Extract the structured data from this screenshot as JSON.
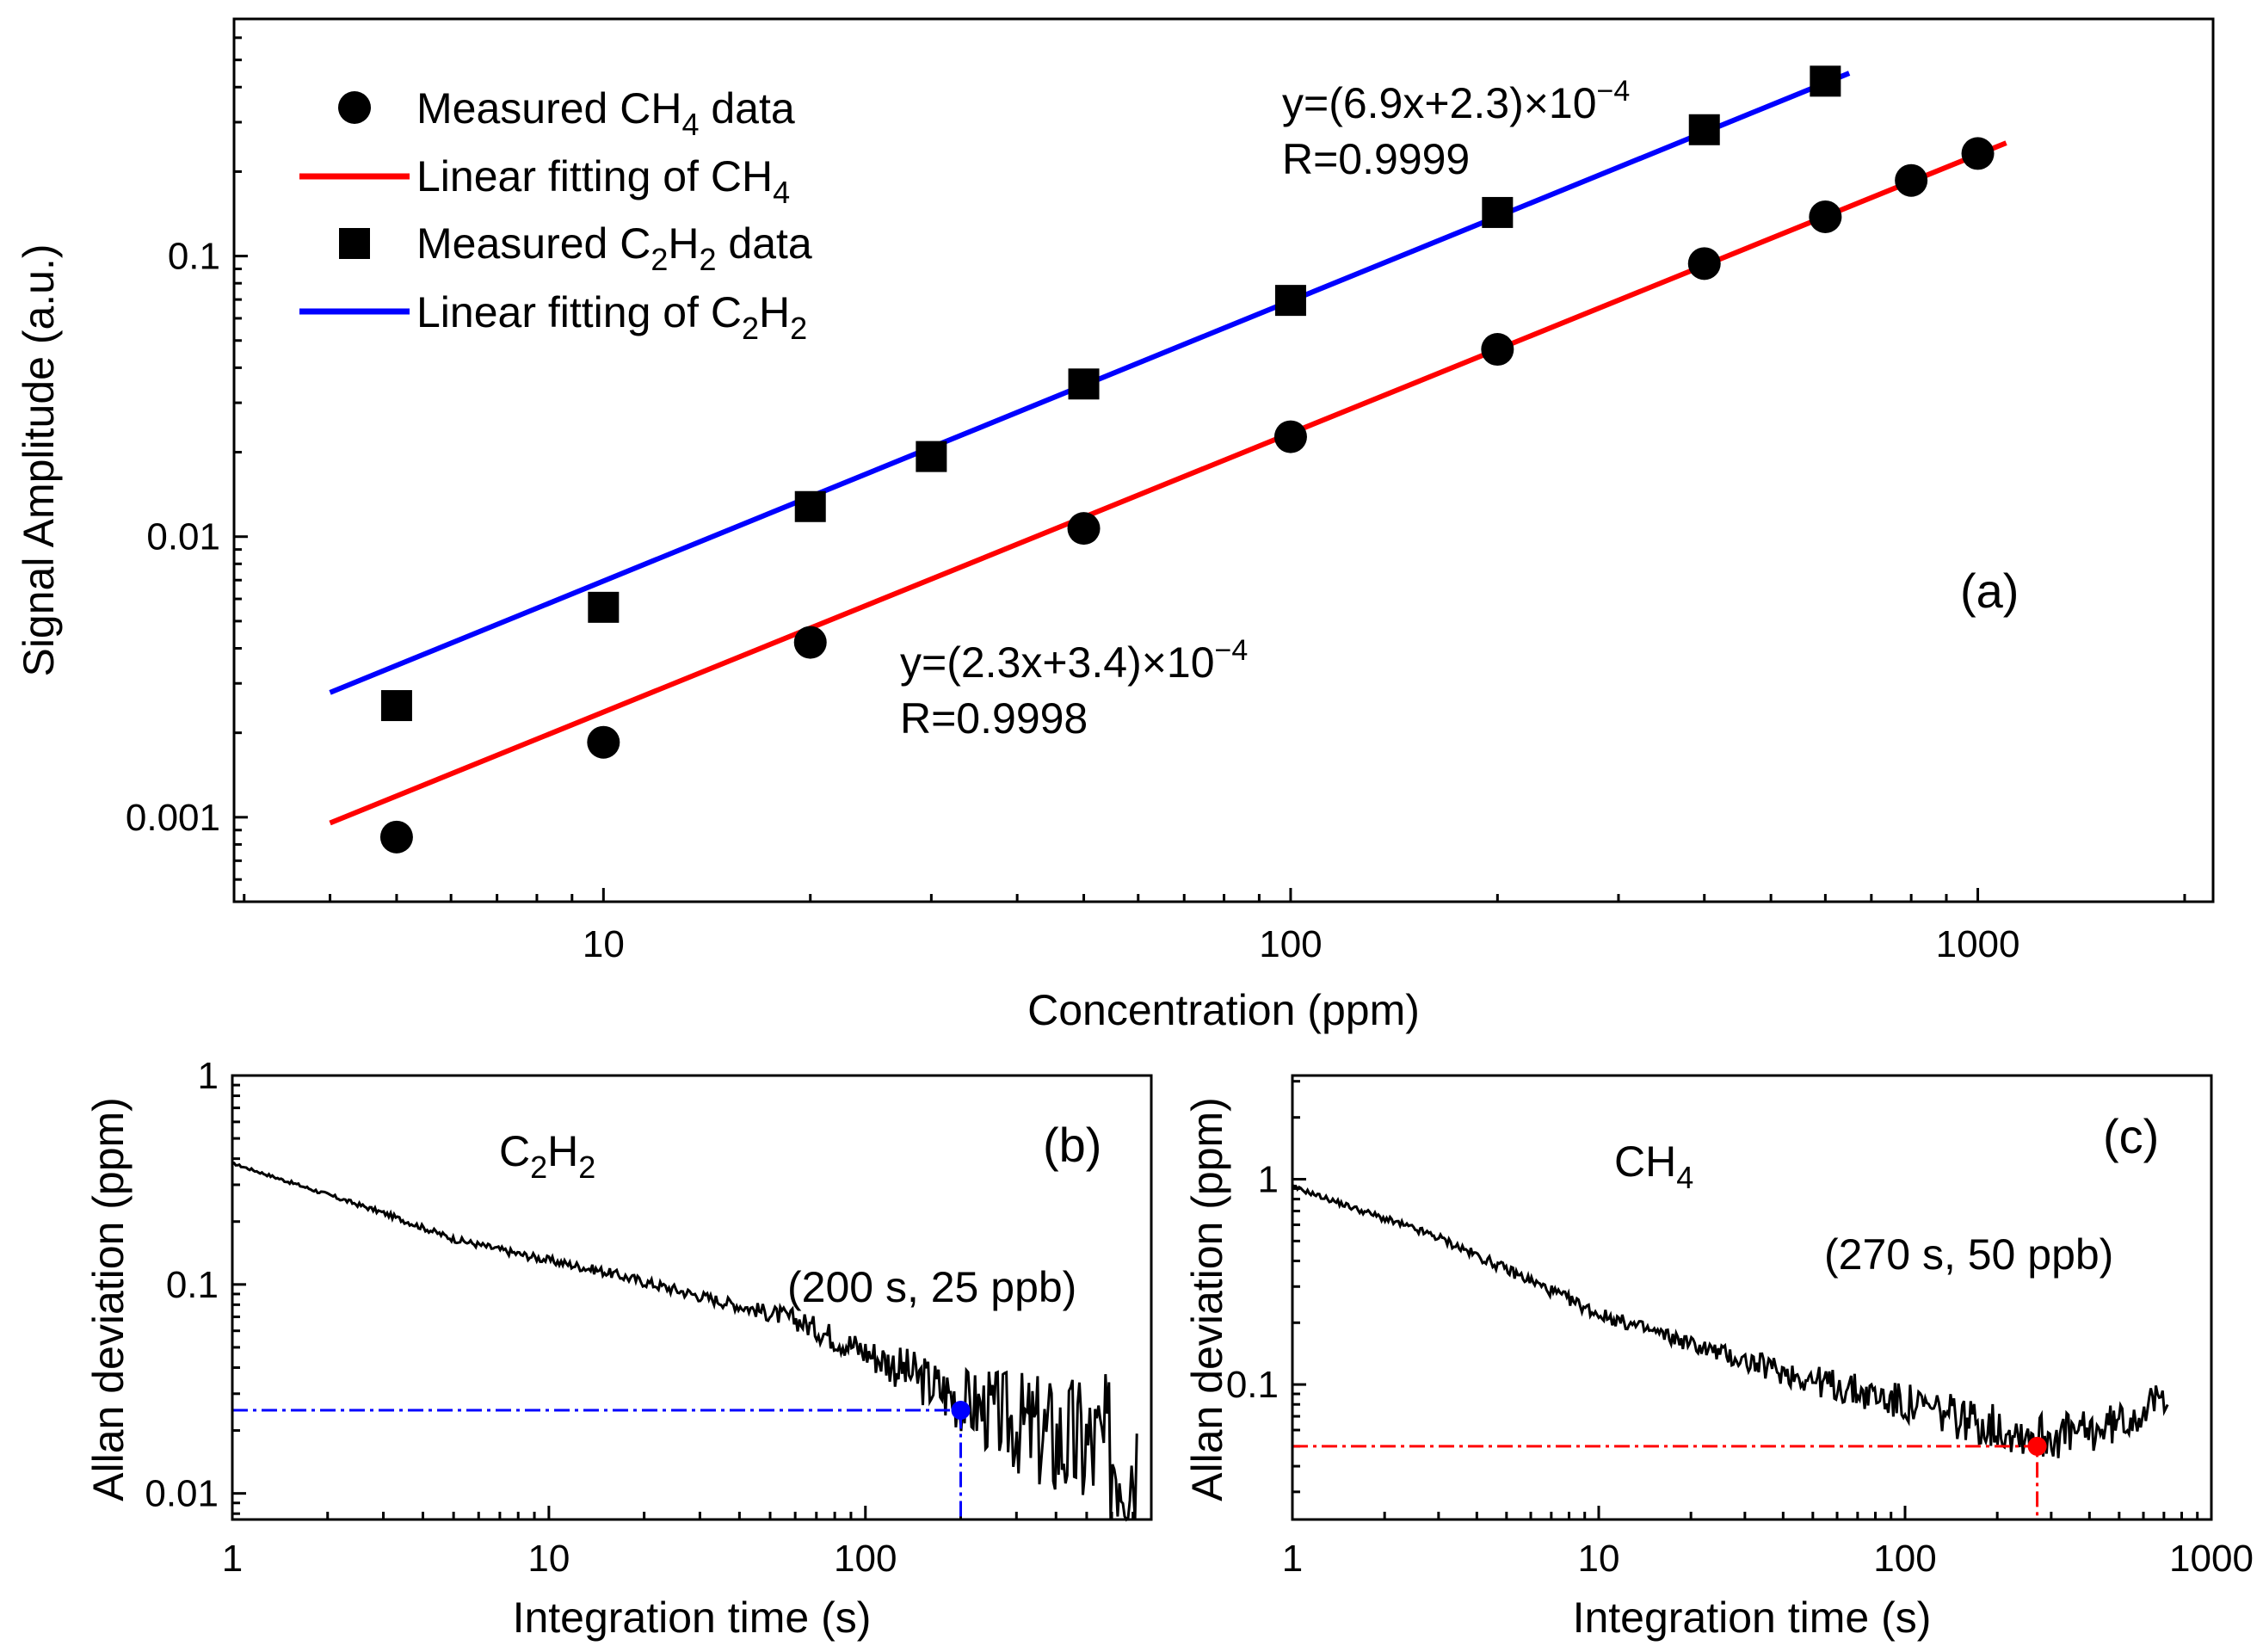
{
  "colors": {
    "ch4": "#ff0000",
    "c2h2": "#0000ff",
    "marker": "#000000",
    "noise": "#000000"
  },
  "chart_data": [
    {
      "panel": "(a)",
      "type": "scatter",
      "x_scale": "log",
      "y_scale": "log",
      "xlabel": "Concentration (ppm)",
      "ylabel": "Signal Amplitude (a.u.)",
      "xlim": [
        2.9,
        2200
      ],
      "ylim": [
        0.0005,
        0.7
      ],
      "x_ticks": [
        10,
        100,
        1000
      ],
      "x_tick_labels": [
        "10",
        "100",
        "1000"
      ],
      "y_ticks": [
        0.001,
        0.01,
        0.1
      ],
      "y_tick_labels": [
        "0.001",
        "0.01",
        "0.1"
      ],
      "series": [
        {
          "key": "ch4_measured",
          "legend": {
            "pre": "Measured CH",
            "sub": "4",
            "post": " data"
          },
          "marker": "circle",
          "x": [
            5,
            10,
            20,
            50,
            100,
            200,
            400,
            600,
            800,
            1000
          ],
          "y": [
            0.00085,
            0.00185,
            0.0042,
            0.0107,
            0.0227,
            0.0465,
            0.094,
            0.138,
            0.186,
            0.232
          ]
        },
        {
          "key": "ch4_fit",
          "legend": {
            "pre": "Linear fitting of CH",
            "sub": "4",
            "post": ""
          },
          "line": true,
          "color_key": "ch4",
          "slope": 0.00023,
          "intercept": 3.4e-05,
          "x_range": [
            4,
            1100
          ]
        },
        {
          "key": "c2h2_measured",
          "legend": {
            "pre": "Measured C",
            "sub": "2",
            "mid": "H",
            "sub2": "2",
            "post": " data"
          },
          "marker": "square",
          "x": [
            5,
            10,
            20,
            30,
            50,
            100,
            200,
            400,
            600
          ],
          "y": [
            0.0025,
            0.0056,
            0.0128,
            0.0193,
            0.035,
            0.0695,
            0.143,
            0.282,
            0.42
          ]
        },
        {
          "key": "c2h2_fit",
          "legend": {
            "pre": "Linear fitting of C",
            "sub": "2",
            "mid": "H",
            "sub2": "2",
            "post": ""
          },
          "line": true,
          "color_key": "c2h2",
          "slope": 0.00069,
          "intercept": 2.3e-05,
          "x_range": [
            4,
            650
          ]
        }
      ],
      "annotations": [
        {
          "key": "c2h2_eq",
          "line1_pre": "y=(6.9x+2.3)×10",
          "line1_sup": "−4",
          "line2": "R=0.9999"
        },
        {
          "key": "ch4_eq",
          "line1_pre": "y=(2.3x+3.4)×10",
          "line1_sup": "−4",
          "line2": "R=0.9998"
        }
      ]
    },
    {
      "panel": "(b)",
      "type": "line",
      "x_scale": "log",
      "y_scale": "log",
      "xlabel": "Integration time (s)",
      "ylabel": "Allan deviation (ppm)",
      "xlim": [
        1,
        800
      ],
      "ylim": [
        0.0075,
        1
      ],
      "x_ticks": [
        1,
        10,
        100
      ],
      "x_tick_labels": [
        "1",
        "10",
        "100"
      ],
      "y_ticks": [
        0.01,
        0.1,
        1
      ],
      "y_tick_labels": [
        "0.01",
        "0.1",
        "1"
      ],
      "gas": {
        "pre": "C",
        "sub": "2",
        "mid": "H",
        "sub2": "2"
      },
      "curve_envelope": [
        [
          1,
          0.38
        ],
        [
          3,
          0.22
        ],
        [
          5,
          0.165
        ],
        [
          8,
          0.14
        ],
        [
          15,
          0.115
        ],
        [
          30,
          0.088
        ],
        [
          60,
          0.068
        ],
        [
          120,
          0.042
        ],
        [
          200,
          0.028
        ],
        [
          400,
          0.018
        ],
        [
          720,
          0.015
        ]
      ],
      "noise_amplitude": [
        [
          1,
          0.005
        ],
        [
          40,
          0.03
        ],
        [
          100,
          0.08
        ],
        [
          200,
          0.16
        ],
        [
          400,
          0.32
        ],
        [
          720,
          0.4
        ]
      ],
      "min_point": {
        "x": 200,
        "y": 0.025
      },
      "annotation": "(200 s, 25 ppb)",
      "color_key": "c2h2"
    },
    {
      "panel": "(c)",
      "type": "line",
      "x_scale": "log",
      "y_scale": "log",
      "xlabel": "Integration time (s)",
      "ylabel": "Allan deviation (ppm)",
      "xlim": [
        1,
        1000
      ],
      "ylim": [
        0.022,
        3.2
      ],
      "x_ticks": [
        1,
        10,
        100,
        1000
      ],
      "x_tick_labels": [
        "1",
        "10",
        "100",
        "1000"
      ],
      "y_ticks": [
        0.1,
        1
      ],
      "y_tick_labels": [
        "0.1",
        "1"
      ],
      "gas": {
        "pre": "CH",
        "sub": "4"
      },
      "curve_envelope": [
        [
          1,
          0.92
        ],
        [
          3,
          0.52
        ],
        [
          6,
          0.32
        ],
        [
          10,
          0.22
        ],
        [
          30,
          0.13
        ],
        [
          60,
          0.098
        ],
        [
          120,
          0.075
        ],
        [
          200,
          0.062
        ],
        [
          270,
          0.056
        ],
        [
          400,
          0.058
        ],
        [
          560,
          0.07
        ],
        [
          720,
          0.09
        ]
      ],
      "noise_amplitude": [
        [
          1,
          0.01
        ],
        [
          20,
          0.04
        ],
        [
          100,
          0.1
        ],
        [
          300,
          0.12
        ],
        [
          720,
          0.08
        ]
      ],
      "min_point": {
        "x": 270,
        "y": 0.05
      },
      "annotation": "(270 s, 50 ppb)",
      "color_key": "ch4"
    }
  ]
}
